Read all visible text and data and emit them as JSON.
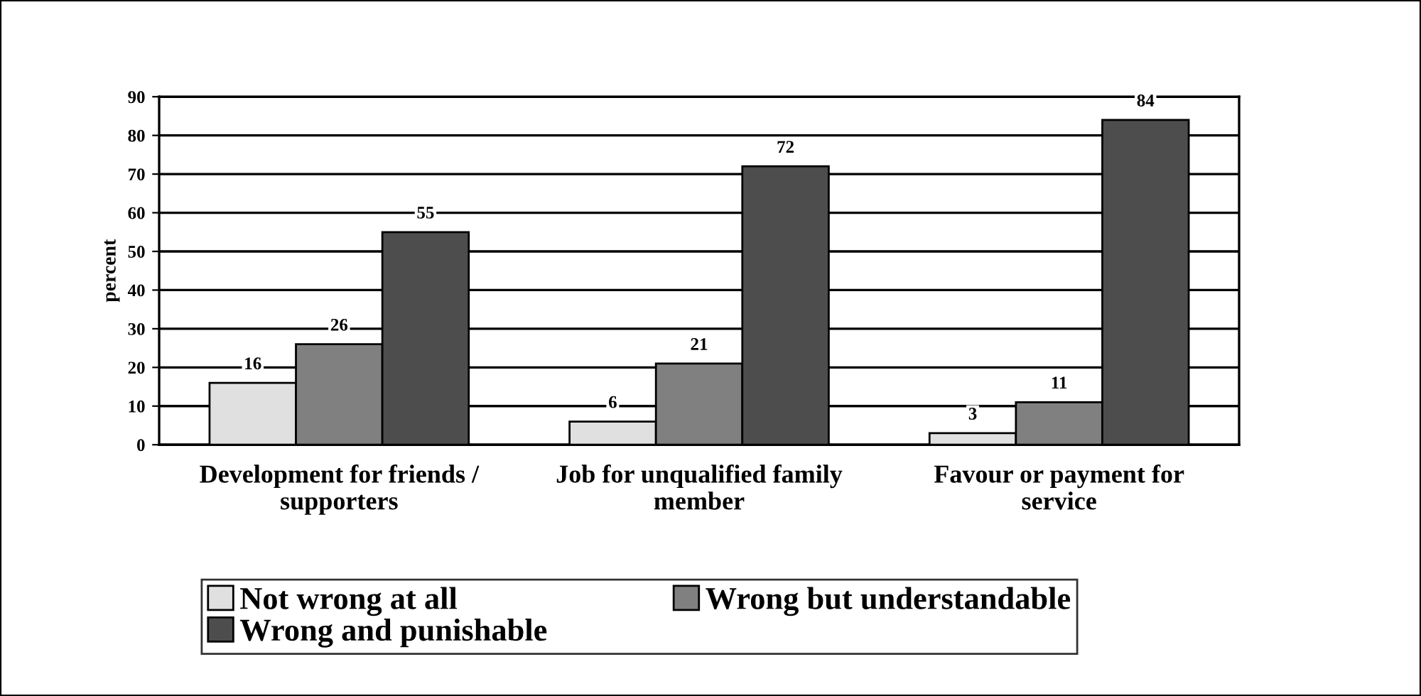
{
  "chart_data": {
    "type": "bar",
    "ylabel": "percent",
    "categories": [
      "Development for friends / supporters",
      "Job for unqualified family member",
      "Favour or payment for service"
    ],
    "series": [
      {
        "name": "Not wrong at all",
        "color": "#e0e0e0",
        "values": [
          16,
          6,
          3
        ]
      },
      {
        "name": "Wrong but understandable",
        "color": "#808080",
        "values": [
          26,
          21,
          11
        ]
      },
      {
        "name": "Wrong and punishable",
        "color": "#4d4d4d",
        "values": [
          55,
          72,
          84
        ]
      }
    ],
    "ylim": [
      0,
      90
    ],
    "yticks": [
      0,
      10,
      20,
      30,
      40,
      50,
      60,
      70,
      80,
      90
    ],
    "grid": "y",
    "legend": "bottom",
    "data_labels": true
  }
}
